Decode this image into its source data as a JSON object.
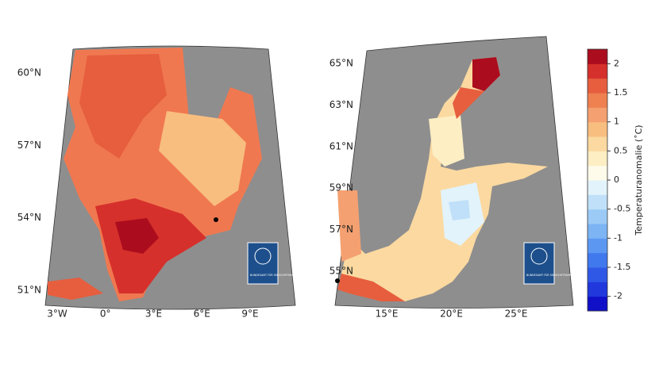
{
  "maps": [
    {
      "lat_labels": [
        "60°N",
        "57°N",
        "54°N",
        "51°N"
      ],
      "lon_labels": [
        "3°W",
        "0°",
        "3°E",
        "6°E",
        "9°E"
      ],
      "logo": "BUNDESAMT FÜR SEESCHIFFFAHRT UND HYDROGRAPHIE"
    },
    {
      "lat_labels": [
        "65°N",
        "63°N",
        "61°N",
        "59°N",
        "57°N",
        "55°N"
      ],
      "lon_labels": [
        "15°E",
        "20°E",
        "25°E"
      ],
      "logo": "BUNDESAMT FÜR SEESCHIFFFAHRT UND HYDROGRAPHIE"
    }
  ],
  "colorbar": {
    "label": "Temperaturanomalie (˚C)",
    "lim": [
      -2.25,
      2.25
    ],
    "ticks": [
      2,
      1.5,
      1,
      0.5,
      0,
      -0.5,
      -1,
      -1.5,
      -2
    ],
    "colors": [
      "#1010c8",
      "#2038dc",
      "#3058e6",
      "#4078ee",
      "#5c98f2",
      "#7cb4f4",
      "#9ccaf6",
      "#bfe0f8",
      "#e2f3fb",
      "#fffbea",
      "#fdeec4",
      "#fbd9a0",
      "#f8be80",
      "#f4a070",
      "#ef8050",
      "#e65e3e",
      "#d6302c",
      "#ab0d1e"
    ]
  }
}
